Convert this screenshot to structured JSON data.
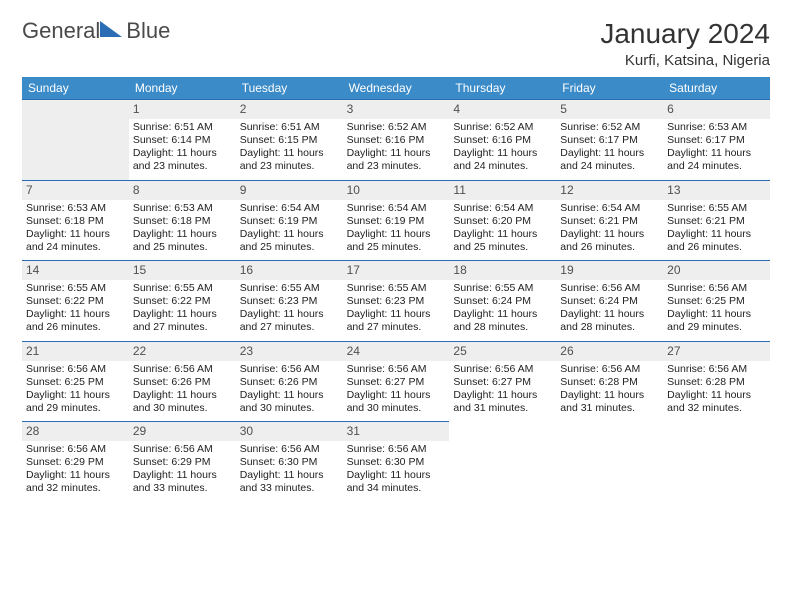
{
  "brand": {
    "name_a": "General",
    "name_b": "Blue"
  },
  "title": "January 2024",
  "location": "Kurfi, Katsina, Nigeria",
  "colors": {
    "header_bg": "#3b8bc9",
    "header_text": "#ffffff",
    "rule": "#2a6db5",
    "daynum_bg": "#eeeeee",
    "daynum_text": "#505050",
    "body_text": "#222222",
    "logo_shape": "#2a6db5",
    "logo_text": "#4a4a4a"
  },
  "weekdays": [
    "Sunday",
    "Monday",
    "Tuesday",
    "Wednesday",
    "Thursday",
    "Friday",
    "Saturday"
  ],
  "start_offset": 1,
  "days": [
    {
      "n": 1,
      "sunrise": "6:51 AM",
      "sunset": "6:14 PM",
      "daylight": "11 hours and 23 minutes."
    },
    {
      "n": 2,
      "sunrise": "6:51 AM",
      "sunset": "6:15 PM",
      "daylight": "11 hours and 23 minutes."
    },
    {
      "n": 3,
      "sunrise": "6:52 AM",
      "sunset": "6:16 PM",
      "daylight": "11 hours and 23 minutes."
    },
    {
      "n": 4,
      "sunrise": "6:52 AM",
      "sunset": "6:16 PM",
      "daylight": "11 hours and 24 minutes."
    },
    {
      "n": 5,
      "sunrise": "6:52 AM",
      "sunset": "6:17 PM",
      "daylight": "11 hours and 24 minutes."
    },
    {
      "n": 6,
      "sunrise": "6:53 AM",
      "sunset": "6:17 PM",
      "daylight": "11 hours and 24 minutes."
    },
    {
      "n": 7,
      "sunrise": "6:53 AM",
      "sunset": "6:18 PM",
      "daylight": "11 hours and 24 minutes."
    },
    {
      "n": 8,
      "sunrise": "6:53 AM",
      "sunset": "6:18 PM",
      "daylight": "11 hours and 25 minutes."
    },
    {
      "n": 9,
      "sunrise": "6:54 AM",
      "sunset": "6:19 PM",
      "daylight": "11 hours and 25 minutes."
    },
    {
      "n": 10,
      "sunrise": "6:54 AM",
      "sunset": "6:19 PM",
      "daylight": "11 hours and 25 minutes."
    },
    {
      "n": 11,
      "sunrise": "6:54 AM",
      "sunset": "6:20 PM",
      "daylight": "11 hours and 25 minutes."
    },
    {
      "n": 12,
      "sunrise": "6:54 AM",
      "sunset": "6:21 PM",
      "daylight": "11 hours and 26 minutes."
    },
    {
      "n": 13,
      "sunrise": "6:55 AM",
      "sunset": "6:21 PM",
      "daylight": "11 hours and 26 minutes."
    },
    {
      "n": 14,
      "sunrise": "6:55 AM",
      "sunset": "6:22 PM",
      "daylight": "11 hours and 26 minutes."
    },
    {
      "n": 15,
      "sunrise": "6:55 AM",
      "sunset": "6:22 PM",
      "daylight": "11 hours and 27 minutes."
    },
    {
      "n": 16,
      "sunrise": "6:55 AM",
      "sunset": "6:23 PM",
      "daylight": "11 hours and 27 minutes."
    },
    {
      "n": 17,
      "sunrise": "6:55 AM",
      "sunset": "6:23 PM",
      "daylight": "11 hours and 27 minutes."
    },
    {
      "n": 18,
      "sunrise": "6:55 AM",
      "sunset": "6:24 PM",
      "daylight": "11 hours and 28 minutes."
    },
    {
      "n": 19,
      "sunrise": "6:56 AM",
      "sunset": "6:24 PM",
      "daylight": "11 hours and 28 minutes."
    },
    {
      "n": 20,
      "sunrise": "6:56 AM",
      "sunset": "6:25 PM",
      "daylight": "11 hours and 29 minutes."
    },
    {
      "n": 21,
      "sunrise": "6:56 AM",
      "sunset": "6:25 PM",
      "daylight": "11 hours and 29 minutes."
    },
    {
      "n": 22,
      "sunrise": "6:56 AM",
      "sunset": "6:26 PM",
      "daylight": "11 hours and 30 minutes."
    },
    {
      "n": 23,
      "sunrise": "6:56 AM",
      "sunset": "6:26 PM",
      "daylight": "11 hours and 30 minutes."
    },
    {
      "n": 24,
      "sunrise": "6:56 AM",
      "sunset": "6:27 PM",
      "daylight": "11 hours and 30 minutes."
    },
    {
      "n": 25,
      "sunrise": "6:56 AM",
      "sunset": "6:27 PM",
      "daylight": "11 hours and 31 minutes."
    },
    {
      "n": 26,
      "sunrise": "6:56 AM",
      "sunset": "6:28 PM",
      "daylight": "11 hours and 31 minutes."
    },
    {
      "n": 27,
      "sunrise": "6:56 AM",
      "sunset": "6:28 PM",
      "daylight": "11 hours and 32 minutes."
    },
    {
      "n": 28,
      "sunrise": "6:56 AM",
      "sunset": "6:29 PM",
      "daylight": "11 hours and 32 minutes."
    },
    {
      "n": 29,
      "sunrise": "6:56 AM",
      "sunset": "6:29 PM",
      "daylight": "11 hours and 33 minutes."
    },
    {
      "n": 30,
      "sunrise": "6:56 AM",
      "sunset": "6:30 PM",
      "daylight": "11 hours and 33 minutes."
    },
    {
      "n": 31,
      "sunrise": "6:56 AM",
      "sunset": "6:30 PM",
      "daylight": "11 hours and 34 minutes."
    }
  ]
}
